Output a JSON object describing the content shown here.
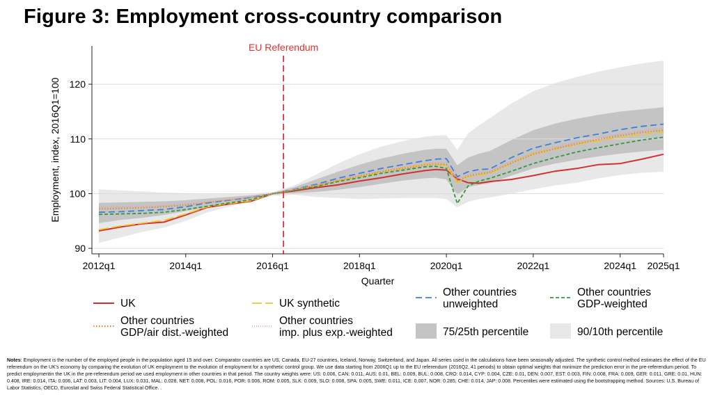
{
  "figure": {
    "title": "Figure 3: Employment cross-country comparison",
    "notes_label": "Notes",
    "notes_text": ": Employment is the number of the employed people in the population aged 15 and over. Comparator countries are US, Canada, EU-27 countries, Iceland, Norway, Switzerland, and Japan. All series used in the calculations have been seasonally adjusted. The synthetic control method estimates the effect of the EU referendum on the UK's economy by comparing the evolution of UK employment to the evolution of employment for a synthetic control group. We use data starting from 2006Q1 up to the EU referendum (2016Q2, 41 periods) to obtain optimal weights that minimize the prediction error in the pre-referendum period. To predict employmentin the UK in the pre-referendum period we used employment in other countries in that period. The country weights were: US: 0.006, CAN: 0.011, AUS: 0.01, BEL: 0.009, BUL: 0.008, CRO: 0.014, CYP: 0.004, CZE: 0.01, DEN: 0.007, EST: 0.003, FIN: 0.008, FRA: 0.009, GER: 0.011, GRE: 0.01, HUN: 0.408, IRE: 0.014, ITA: 0.006, LAT: 0.003, LIT: 0.004, LUX: 0.031, MAL: 0.028, NET: 0.008, POL: 0.016, POR: 0.006, ROM: 0.005, SLK: 0.009, SLO: 0.008, SPA: 0.005, SWE: 0.011, ICE: 0.007, NOR: 0.285, CHE: 0.014, JAP: 0.008. Percentiles were estimated using the bootstrapping method. Sources: U.S. Bureau of Labor Statistics, OECD, Eurostat and Swiss Federal Statistical Office. ."
  },
  "chart_data": {
    "type": "line",
    "xlabel": "Quarter",
    "ylabel": "Employment, index, 2016Q1=100",
    "xlim": [
      "2012q1",
      "2025q1"
    ],
    "ylim": [
      89,
      127
    ],
    "xticks": [
      "2012q1",
      "2014q1",
      "2016q1",
      "2018q1",
      "2020q1",
      "2022q1",
      "2024q1",
      "2025q1"
    ],
    "yticks": [
      90,
      100,
      110,
      120
    ],
    "grid": "horizontal",
    "annotation": {
      "label": "EU Referendum",
      "x": "2016q2",
      "color": "#e03030"
    },
    "legend_position": "bottom",
    "x": [
      "2012q1",
      "2012q3",
      "2013q1",
      "2013q3",
      "2014q1",
      "2014q3",
      "2015q1",
      "2015q3",
      "2016q1",
      "2016q3",
      "2017q1",
      "2017q3",
      "2018q1",
      "2018q3",
      "2019q1",
      "2019q3",
      "2019q4",
      "2020q1",
      "2020q2",
      "2020q3",
      "2020q4",
      "2021q1",
      "2021q3",
      "2022q1",
      "2022q3",
      "2023q1",
      "2023q3",
      "2024q1",
      "2024q3",
      "2025q1"
    ],
    "series": [
      {
        "name": "UK",
        "style": "solid",
        "color": "#d0312d",
        "values": [
          93.2,
          93.9,
          94.5,
          94.8,
          96.1,
          97.5,
          98.1,
          98.6,
          100.0,
          100.5,
          101.1,
          101.6,
          102.3,
          102.9,
          103.6,
          104.2,
          104.4,
          104.3,
          102.7,
          102.0,
          101.9,
          102.2,
          102.6,
          103.3,
          104.1,
          104.6,
          105.3,
          105.5,
          106.3,
          107.2
        ]
      },
      {
        "name": "UK synthetic",
        "style": "longdash",
        "color": "#f2c230",
        "values": [
          93.4,
          94.1,
          94.6,
          95.1,
          96.3,
          97.6,
          98.2,
          98.7,
          100.0,
          100.7,
          101.4,
          102.3,
          103.1,
          104.0,
          104.7,
          105.3,
          105.4,
          105.1,
          102.0,
          103.1,
          103.4,
          103.7,
          105.6,
          107.3,
          108.2,
          109.0,
          109.7,
          110.3,
          110.9,
          111.3
        ]
      },
      {
        "name": "Other countries unweighted",
        "style": "dash",
        "color": "#3d7fd9",
        "values": [
          96.6,
          96.7,
          96.9,
          97.1,
          97.6,
          98.3,
          98.8,
          99.3,
          100.0,
          100.8,
          101.7,
          102.8,
          103.7,
          104.6,
          105.3,
          106.0,
          106.3,
          106.4,
          103.1,
          104.0,
          104.4,
          104.5,
          106.6,
          108.3,
          109.3,
          110.2,
          110.9,
          111.7,
          112.3,
          112.7
        ]
      },
      {
        "name": "Other countries GDP-weighted",
        "style": "shortdash",
        "color": "#2e9a3a",
        "values": [
          96.2,
          96.3,
          96.4,
          96.6,
          97.1,
          97.7,
          98.3,
          98.9,
          100.0,
          100.6,
          101.3,
          102.2,
          102.9,
          103.7,
          104.3,
          104.9,
          105.0,
          104.6,
          98.2,
          101.4,
          102.3,
          102.8,
          104.1,
          105.5,
          106.6,
          107.6,
          108.4,
          109.1,
          109.8,
          110.3
        ]
      },
      {
        "name": "Other countries GDP/air dist.-weighted",
        "style": "dot",
        "color": "#e08a2a",
        "values": [
          97.2,
          97.3,
          97.4,
          97.6,
          97.9,
          98.4,
          98.8,
          99.3,
          100.0,
          100.7,
          101.5,
          102.4,
          103.2,
          104.0,
          104.6,
          105.2,
          105.4,
          105.3,
          102.4,
          103.2,
          103.6,
          103.9,
          105.6,
          107.2,
          108.2,
          109.1,
          109.9,
          110.6,
          111.2,
          111.6
        ]
      },
      {
        "name": "Other countries imp. plus exp.-weighted",
        "style": "finedot",
        "color": "#e89a9a",
        "values": [
          97.5,
          97.6,
          97.6,
          97.8,
          98.1,
          98.5,
          98.9,
          99.4,
          100.0,
          100.8,
          101.6,
          102.5,
          103.4,
          104.2,
          104.9,
          105.5,
          105.7,
          105.6,
          102.8,
          103.5,
          103.9,
          104.2,
          105.9,
          107.5,
          108.5,
          109.4,
          110.2,
          110.9,
          111.5,
          112.0
        ]
      }
    ],
    "bands": [
      {
        "name": "90/10th percentile",
        "color": "#e8e8e8",
        "lower": [
          91.0,
          92.0,
          93.0,
          93.8,
          95.0,
          96.6,
          97.6,
          98.6,
          99.6,
          99.8,
          99.4,
          99.2,
          99.0,
          99.1,
          99.2,
          99.2,
          99.2,
          99.0,
          97.5,
          98.5,
          99.0,
          99.3,
          100.0,
          100.8,
          101.5,
          102.0,
          102.8,
          103.4,
          103.8,
          104.0
        ],
        "upper": [
          100.8,
          100.6,
          100.4,
          100.2,
          100.1,
          100.0,
          100.0,
          100.0,
          100.3,
          101.5,
          103.5,
          105.5,
          107.2,
          108.6,
          109.6,
          110.4,
          110.6,
          110.7,
          108.0,
          111.0,
          112.5,
          113.8,
          116.5,
          118.7,
          120.2,
          121.3,
          122.3,
          123.1,
          123.8,
          124.3
        ]
      },
      {
        "name": "75/25th percentile",
        "color": "#c4c4c4",
        "lower": [
          94.6,
          95.2,
          95.6,
          96.1,
          96.8,
          97.5,
          98.2,
          98.9,
          99.8,
          100.1,
          100.3,
          100.7,
          101.2,
          101.8,
          102.4,
          102.8,
          102.9,
          102.6,
          99.8,
          101.2,
          101.6,
          101.9,
          103.3,
          104.6,
          105.5,
          106.2,
          106.8,
          107.3,
          107.7,
          108.0
        ],
        "upper": [
          98.3,
          98.4,
          98.5,
          98.6,
          98.8,
          99.1,
          99.4,
          99.7,
          100.1,
          101.2,
          102.6,
          104.0,
          105.3,
          106.4,
          107.3,
          108.0,
          108.2,
          108.2,
          105.2,
          106.6,
          107.3,
          107.8,
          109.8,
          111.6,
          112.8,
          113.7,
          114.4,
          115.0,
          115.4,
          115.8
        ]
      }
    ],
    "legend": [
      {
        "label": "UK",
        "kind": "line",
        "ref": 0
      },
      {
        "label": "UK synthetic",
        "kind": "line",
        "ref": 1
      },
      {
        "label": "Other countries\nunweighted",
        "kind": "line",
        "ref": 2
      },
      {
        "label": "Other countries\nGDP-weighted",
        "kind": "line",
        "ref": 3
      },
      {
        "label": "Other countries\nGDP/air dist.-weighted",
        "kind": "line",
        "ref": 4
      },
      {
        "label": "Other countries\nimp. plus exp.-weighted",
        "kind": "line",
        "ref": 5
      },
      {
        "label": "75/25th percentile",
        "kind": "band",
        "ref": 1
      },
      {
        "label": "90/10th percentile",
        "kind": "band",
        "ref": 0
      }
    ]
  }
}
